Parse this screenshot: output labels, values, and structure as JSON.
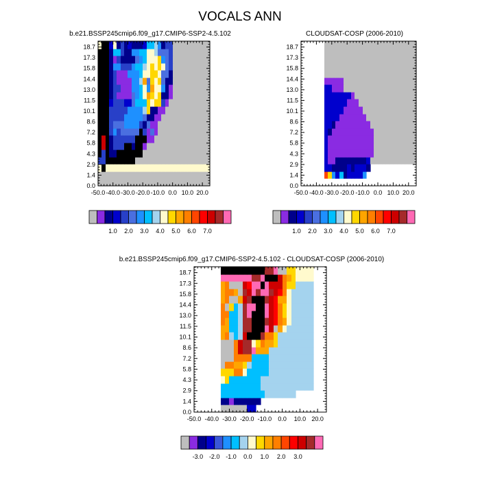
{
  "title": "VOCALS ANN",
  "palettes": {
    "abs": [
      "#bebebe",
      "#8a2be2",
      "#00008b",
      "#0000cd",
      "#2840c8",
      "#4a6fe0",
      "#1e90ff",
      "#00bfff",
      "#a4d3ee",
      "#fffacd",
      "#ffd700",
      "#ffa500",
      "#ff7f00",
      "#ff4500",
      "#ff0000",
      "#cd0000",
      "#a52a2a",
      "#ff69b4"
    ],
    "diff": [
      "#bebebe",
      "#8a2be2",
      "#00008b",
      "#0000cd",
      "#3a57d9",
      "#1e90ff",
      "#00bfff",
      "#a4d3ee",
      "#fffacd",
      "#ffd700",
      "#ffa500",
      "#ff7f00",
      "#ff4500",
      "#ff0000",
      "#cd0000",
      "#a52a2a",
      "#ff69b4"
    ]
  },
  "chart_data": [
    {
      "type": "heatmap",
      "title": "b.e21.BSSP245cmip6.f09_g17.CMIP6-SSP2-4.5.102",
      "xticks": [
        "-50.0",
        "-40.0",
        "-30.0",
        "-20.0",
        "-10.0",
        "0.0",
        "10.0",
        "20.0"
      ],
      "yticks": [
        "0.0",
        "1.4",
        "2.9",
        "4.3",
        "5.8",
        "7.2",
        "8.6",
        "10.1",
        "11.5",
        "13.0",
        "14.4",
        "15.8",
        "17.3",
        "18.7"
      ],
      "xlim": [
        -50,
        25
      ],
      "ylim": [
        0,
        20
      ],
      "cell_size": [
        2.5,
        1
      ],
      "palette": "abs",
      "missing_color": "#bebebe",
      "colorbar_labels": [
        "1.0",
        "2.0",
        "3.0",
        "4.0",
        "5.0",
        "6.0",
        "7.0"
      ],
      "rows": [
        "LLLLLLLLLLLLLLLLLLLLLLLLLLLLLL",
        "LLLLLLLLLLLLLLLLLLLLLLLLLLLLLL",
        "IYIIIIIIIIIIIIIIIIIIIIIIIIIIII",
        "DDSSSSSSSSLLLLLLLLLLLLLLLLLLLL",
        "RDSBBSSSSSSSLLLLLLLLLLLLLLLLLL",
        "ROSBDDDSSBSSALLLLLLLLLLLLLLLLL",
        "ROSBDDDDDDSSSAALLLLLLLLLLLLLLL",
        "RRSDFDEEEEESDAEALLLLLLLLLLLLLL",
        "RRSDEEEFFFFDBEAALLLLLLLLLLLLLL",
        "RRSDDDDFFFFFEBBAALLLLLLLLLLLLL",
        "RRSDDDDDFFFFHJBBAALLLLLLLLLLLL",
        "RRSCDDDCCEGGGJIJJDALLLLLLLLLLL",
        "RRSBDAAAAEFGIKJIJBBALLLLLLLLLL",
        "RRSBDDAAAFFGIFKIIFBALLLLLLLLLL",
        "RRSBDAAAAFFHKEJIJEBBLLLLLLLLLL",
        "RRSBDAAAFFFGIIJJIEEBLLLLLLLLLL",
        "RRSBFFDDDFGGHIJIJIEDLLLLLLLLLL",
        "RRSBADBBBBEFGIIIJFEDLLLLLLLLLL",
        "RRSBGGDBBFFGGIIHEEEDLLLLLLLLLL",
        "ISSCIBDBCBBBCGGHFBDDLLLLLLLLLL"
      ]
    },
    {
      "type": "heatmap",
      "title": "CLOUDSAT-COSP (2006-2010)",
      "xticks": [
        "-50.0",
        "-40.0",
        "-30.0",
        "-20.0",
        "-10.0",
        "0.0",
        "10.0",
        "20.0"
      ],
      "yticks": [
        "0.0",
        "1.4",
        "2.9",
        "4.3",
        "5.8",
        "7.2",
        "8.6",
        "10.1",
        "11.5",
        "13.0",
        "14.4",
        "15.8",
        "17.3",
        "18.7"
      ],
      "xlim": [
        -50,
        25
      ],
      "ylim": [
        0,
        20
      ],
      "cell_size": [
        2.5,
        1
      ],
      "palette": "abs",
      "missing_color": "#bebebe",
      "colorbar_labels": [
        "1.0",
        "2.0",
        "3.0",
        "4.0",
        "5.0",
        "6.0",
        "7.0"
      ],
      "rows": [
        "WWWWWWWWWWWWWWWWWWWWWWWWWWWWWW",
        "WWWWWWMJFCGBCCCCFWWWWWWWWWWWWW",
        "WWWWWWCCBBBBCBCCCBWWWWWWWWWWWW",
        "WWWWWWCAABBBBBBBBCLLLLLLLLLLLL",
        "WWWWWWCAAAAAAAAAAAALLLLLLLLLLL",
        "WWWWWWCAAAAAAAAAAAALLLLLLLLLLL",
        "WWWWWWCAAAAAAAAAAAALLLLLLLLLLL",
        "WWWWWWCBAAAAAAAAAAALLLLLLLLLLL",
        "WWWWWWCCBAAAAAAAAALLLLLLLLLLLL",
        "WWWWWWCCCCAAAAAAALLLLLLLLLLLLL",
        "WWWWWWCCCCCAAAAALLLLLLLLLLLLLL",
        "WWWWWWCCCCCCAAALLLLLLLLLLLLLLL",
        "WWWWWWCCCCCCCALLLLLLLLLLLLLLLL",
        "WWWWWWCCAAALLLLLLLLLLLLLLLLLLL",
        "WWWWWWAAAAALLLLLLLLLLLLLLLLLLL",
        "WWWWWWLLLLLLLLLLLLLLLLLLLLLLLL",
        "WWWWWWLLLLLLLLLLLLLLLLLLLLLLLL",
        "WWWWWWLLLLLLLLLLLLLLLLLLLLLLLL",
        "WWWWWWLLLLLLLLLLLLLLLLLLLLLLLL",
        "WWWWWWLLLLLLLLLLLLLLLLLLLLLLLL"
      ]
    },
    {
      "type": "heatmap",
      "title": "b.e21.BSSP245cmip6.f09_g17.CMIP6-SSP2-4.5.102 - CLOUDSAT-COSP (2006-2010)",
      "xticks": [
        "-50.0",
        "-40.0",
        "-30.0",
        "-20.0",
        "-10.0",
        "0.0",
        "10.0",
        "20.0"
      ],
      "yticks": [
        "0.0",
        "1.4",
        "2.9",
        "4.3",
        "5.8",
        "7.2",
        "8.6",
        "10.1",
        "11.5",
        "13.0",
        "14.4",
        "15.8",
        "17.3",
        "18.7"
      ],
      "xlim": [
        -50,
        25
      ],
      "ylim": [
        0,
        20
      ],
      "cell_size": [
        2.5,
        1
      ],
      "palette": "diff",
      "missing_color": "#bebebe",
      "colorbar_labels": [
        "-3.0",
        "-2.0",
        "-1.0",
        "0.0",
        "1.0",
        "2.0",
        "3.0"
      ],
      "rows": [
        "WWWWWWLLLLLLCCWWWWWWWWWWWWWWWW",
        "WWWWWWBBABBBBBBWWWWWWWWWWWWWWW",
        "WWWWWWFFFFFFFFFFGGGGGGGWWWWWWW",
        "WWWWWWFFFFFFFFFGGGGGGGGGGGGWWW",
        "WWWWWWHIFFFFFFFGGGGGGGGGGGGWWW",
        "WWWWWWIIIKKHFFFFFGGGGGGGGGGWWW",
        "WWWWWWLKKJJIGFFFFGGGGGGGGGGWWW",
        "WWWWWWLLLKKKKFFFFGGGGGGGGGGWWW",
        "WWWWWWLLLKNOOPJJJGGGGGGGGGGWWW",
        "WWWWWWLLLKNOOHIKJJIGGGGGGGGWWW",
        "WWWWWWJKGFGNQQQOKKIGGGGGGGGWWW",
        "WWWWWWJJFFGOOQQQPNLJHGGGGGGWWW",
        "WWWWWWKJFFGOOQQQONMKJHGGGGGWWW",
        "WWWWWWKKFFGOPQQQPNMKIHGGGGGWWW",
        "WWWWWWKLIFGOPPQQPNMKIHGGGGGWWW",
        "WWWWWWJKLLJNOQQQONMJJHGGGGGWWW",
        "WWWWWWJKKJLONPOPPONMKHGGGGGWWW",
        "WWWWWWJKLLLNMPPQPNNNKIIGGGGWWW",
        "WWWWWWPPPPPPPOOPQQQNKJIHHHHWWW",
        "WWWWWWQQQQQQQQQQOOPLLIIHHHHWWW"
      ]
    }
  ]
}
